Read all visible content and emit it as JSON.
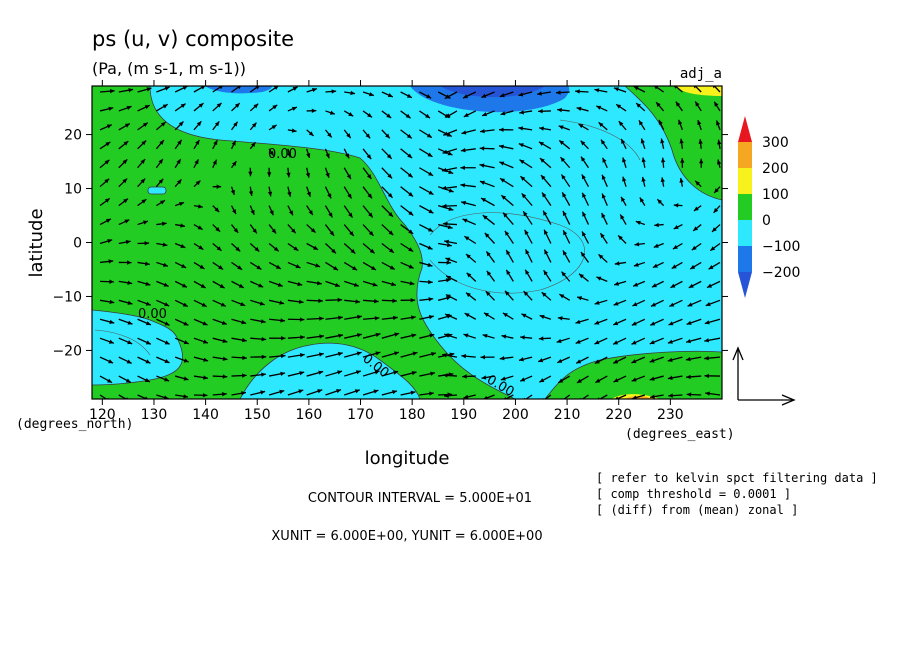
{
  "chart_data": {
    "type": "contour",
    "title": "ps (u, v) composite",
    "subtitle": "(Pa, (m s-1, m s-1))",
    "label_top_right": "adj_a",
    "xlabel": "longitude",
    "ylabel": "latitude",
    "x_unit_label": "(degrees_east)",
    "y_unit_label": "(degrees_north)",
    "xlim": [
      118,
      240
    ],
    "ylim": [
      -29,
      29
    ],
    "x_ticks": [
      120,
      130,
      140,
      150,
      160,
      170,
      180,
      190,
      200,
      210,
      220,
      230
    ],
    "y_ticks": [
      -20,
      -10,
      0,
      10,
      20
    ],
    "contour_labels": [
      "0.00",
      "0.00",
      "0.00",
      "0.00"
    ],
    "colorbar": {
      "levels": [
        "300",
        "200",
        "100",
        "0",
        "−100",
        "−200"
      ],
      "colors": [
        "#e8161e",
        "#f5a623",
        "#f7f21b",
        "#23cc22",
        "#2ee8ff",
        "#1f78ea",
        "#2554d6"
      ]
    },
    "notes": {
      "contour_interval": "CONTOUR INTERVAL = 5.000E+01",
      "units": "XUNIT = 6.000E+00, YUNIT = 6.000E+00",
      "info": [
        "[ refer to kelvin spct filtering data ]",
        "[ comp threshold = 0.0001 ]",
        "[ (diff) from (mean) zonal ]"
      ]
    }
  }
}
